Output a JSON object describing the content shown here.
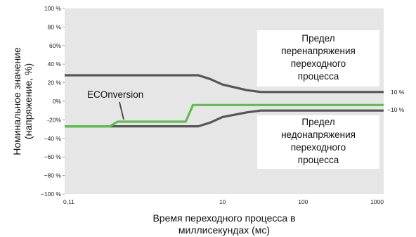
{
  "chart_data": {
    "type": "line",
    "xscale": "log",
    "xlim": [
      0.11,
      1000
    ],
    "ylim": [
      -100,
      100
    ],
    "x_ticks": [
      {
        "value": 0.11,
        "label": "0,11"
      },
      {
        "value": 10,
        "label": "10"
      },
      {
        "value": 100,
        "label": "100"
      },
      {
        "value": 1000,
        "label": "1000"
      }
    ],
    "y_ticks": [
      {
        "value": 100,
        "label": "100 %"
      },
      {
        "value": 80,
        "label": "80 %"
      },
      {
        "value": 60,
        "label": "60%"
      },
      {
        "value": 40,
        "label": "40 %"
      },
      {
        "value": 20,
        "label": "20 %"
      },
      {
        "value": 0,
        "label": "0%"
      },
      {
        "value": -20,
        "label": "-20%"
      },
      {
        "value": -40,
        "label": "−40 %"
      },
      {
        "value": -60,
        "label": "−60 %"
      },
      {
        "value": -80,
        "label": "−80 %"
      },
      {
        "value": -100,
        "label": "−100 %"
      }
    ],
    "xlabel": [
      "Время переходного процесса в",
      "миллисекундах (мс)"
    ],
    "ylabel": [
      "Номинальное значение",
      "(напряжение, %)"
    ],
    "series": [
      {
        "name": "Предел перенапряжения переходного процесса",
        "color": "#555555",
        "x": [
          0.11,
          5,
          7,
          10,
          20,
          30,
          1000
        ],
        "y": [
          28,
          28,
          24,
          18,
          12,
          10,
          10
        ]
      },
      {
        "name": "Предел недонапряжения переходного процесса",
        "color": "#555555",
        "x": [
          0.11,
          5,
          7,
          10,
          20,
          30,
          1000
        ],
        "y": [
          -27,
          -27,
          -23,
          -17,
          -12,
          -10,
          -10
        ]
      },
      {
        "name": "ECOnversion",
        "color": "#5cbf4a",
        "x": [
          0.11,
          0.4,
          0.5,
          3.5,
          4.3,
          1000
        ],
        "y": [
          -27,
          -27,
          -22,
          -22,
          -4,
          -4
        ]
      }
    ],
    "annotations": {
      "over_limit": [
        "Предел",
        "перенапряжения",
        "переходного",
        "процесса"
      ],
      "under_limit": [
        "Предел",
        "недонапряжения",
        "переходного",
        "процесса"
      ],
      "econversion": "ECOnversion",
      "end_label_top": "10 %",
      "end_label_bottom": "−10 %"
    },
    "grid": false,
    "legend": "none"
  }
}
